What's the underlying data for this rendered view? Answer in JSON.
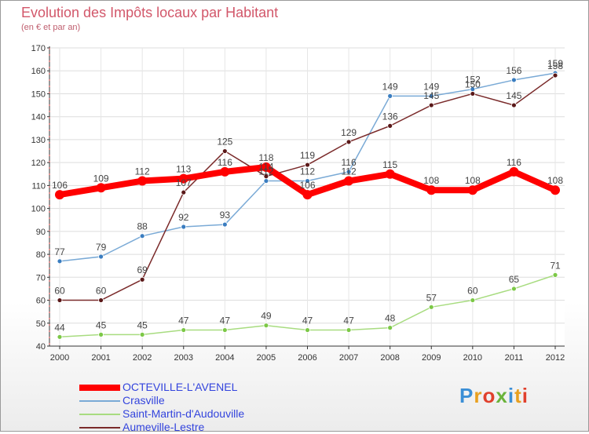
{
  "title": "Evolution des Impôts locaux par Habitant",
  "subtitle": "(en € et par an)",
  "logo_letters": [
    "P",
    "r",
    "o",
    "x",
    "i",
    "t",
    "i"
  ],
  "logo_colors": [
    "#3b8fd6",
    "#e8a020",
    "#e0402c",
    "#6ab33a",
    "#3b8fd6",
    "#e8a020",
    "#e0402c"
  ],
  "chart_data": {
    "type": "line",
    "x": [
      "2000",
      "2001",
      "2002",
      "2003",
      "2004",
      "2005",
      "2006",
      "2007",
      "2008",
      "2009",
      "2010",
      "2011",
      "2012"
    ],
    "ylim": [
      40,
      170
    ],
    "yticks": [
      40,
      50,
      60,
      70,
      80,
      90,
      100,
      110,
      120,
      130,
      140,
      150,
      160,
      170
    ],
    "grid": true,
    "legend_position": "bottom-left",
    "series": [
      {
        "name": "OCTEVILLE-L'AVENEL",
        "color": "#ff0000",
        "marker": "#ff0000",
        "values": [
          106,
          109,
          112,
          113,
          116,
          118,
          106,
          112,
          115,
          108,
          108,
          116,
          108
        ]
      },
      {
        "name": "Crasville",
        "color": "#7aaad6",
        "marker": "#3a7dc0",
        "values": [
          77,
          79,
          88,
          92,
          93,
          112,
          112,
          116,
          149,
          149,
          152,
          156,
          159
        ]
      },
      {
        "name": "Saint-Martin-d'Audouville",
        "color": "#a8dc80",
        "marker": "#7cc846",
        "values": [
          44,
          45,
          45,
          47,
          47,
          49,
          47,
          47,
          48,
          57,
          60,
          65,
          71
        ]
      },
      {
        "name": "Aumeville-Lestre",
        "color": "#7a2a2a",
        "marker": "#5a1818",
        "values": [
          60,
          60,
          69,
          107,
          125,
          114,
          119,
          129,
          136,
          145,
          150,
          145,
          158
        ]
      }
    ]
  }
}
